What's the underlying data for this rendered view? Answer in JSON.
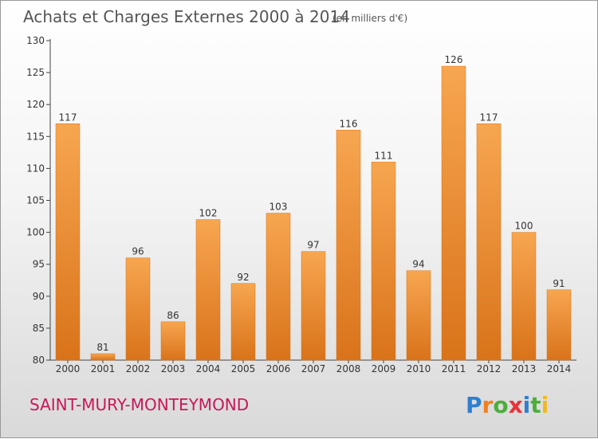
{
  "chart_data": {
    "type": "bar",
    "title": "Achats et Charges Externes 2000 à 2014",
    "unit_label": "(en milliers d'€)",
    "categories": [
      "2000",
      "2001",
      "2002",
      "2003",
      "2004",
      "2005",
      "2006",
      "2007",
      "2008",
      "2009",
      "2010",
      "2011",
      "2012",
      "2013",
      "2014"
    ],
    "values": [
      117,
      81,
      96,
      86,
      102,
      92,
      103,
      97,
      116,
      111,
      94,
      126,
      117,
      100,
      91
    ],
    "ylim": [
      80,
      130
    ],
    "yticks": [
      80,
      85,
      90,
      95,
      100,
      105,
      110,
      115,
      120,
      125,
      130
    ],
    "xlabel": "",
    "ylabel": "",
    "grid": false,
    "bar_color": "#f0983a",
    "bar_color_dark": "#d9731a"
  },
  "footer": {
    "commune": "SAINT-MURY-MONTEYMOND",
    "logo_letters": [
      "P",
      "r",
      "o",
      "x",
      "i",
      "t",
      "i"
    ],
    "logo_colors": [
      "#2f7fd0",
      "#f07f1e",
      "#4cae3c",
      "#e8323c",
      "#2f7fd0",
      "#4cae3c",
      "#f0b91e"
    ]
  },
  "colors": {
    "title": "#555555",
    "commune": "#c8185a",
    "axis": "#444444"
  }
}
